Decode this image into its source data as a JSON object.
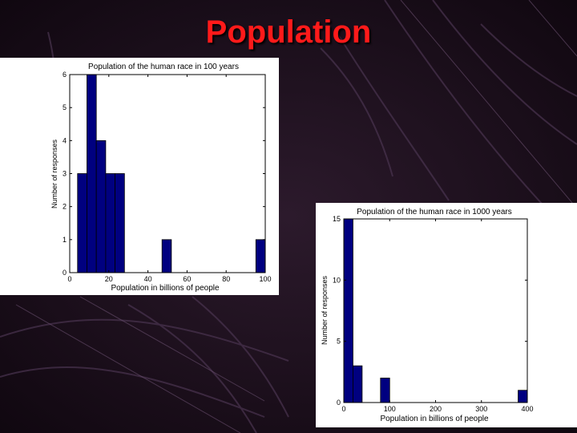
{
  "slide": {
    "title": "Population",
    "colors": {
      "title": "#ff1a1a",
      "background": "#140a14",
      "bar_fill": "#000080"
    }
  },
  "chart_data": [
    {
      "type": "bar",
      "title": "Population of the human race in 100 years",
      "xlabel": "Population in billions of people",
      "ylabel": "Number of responses",
      "xlim": [
        0,
        100
      ],
      "ylim": [
        0,
        6
      ],
      "xticks": [
        0,
        20,
        40,
        60,
        80,
        100
      ],
      "yticks": [
        0,
        1,
        2,
        3,
        4,
        5,
        6
      ],
      "bin_width": 4.8,
      "bins": [
        {
          "start": 4,
          "end": 8.8,
          "value": 3
        },
        {
          "start": 8.8,
          "end": 13.6,
          "value": 6
        },
        {
          "start": 13.6,
          "end": 18.4,
          "value": 4
        },
        {
          "start": 18.4,
          "end": 23.2,
          "value": 3
        },
        {
          "start": 23.2,
          "end": 28,
          "value": 3
        },
        {
          "start": 47.2,
          "end": 52,
          "value": 1
        },
        {
          "start": 95.2,
          "end": 100,
          "value": 1
        }
      ],
      "grid": false
    },
    {
      "type": "bar",
      "title": "Population of the human race in 1000 years",
      "xlabel": "Population in billions of people",
      "ylabel": "Number of responses",
      "xlim": [
        0,
        400
      ],
      "ylim": [
        0,
        15
      ],
      "xticks": [
        0,
        100,
        200,
        300,
        400
      ],
      "yticks": [
        0,
        5,
        10,
        15
      ],
      "bin_width": 20,
      "bins": [
        {
          "start": 0,
          "end": 20,
          "value": 15
        },
        {
          "start": 20,
          "end": 40,
          "value": 3
        },
        {
          "start": 80,
          "end": 100,
          "value": 2
        },
        {
          "start": 380,
          "end": 400,
          "value": 1
        }
      ],
      "grid": false
    }
  ]
}
